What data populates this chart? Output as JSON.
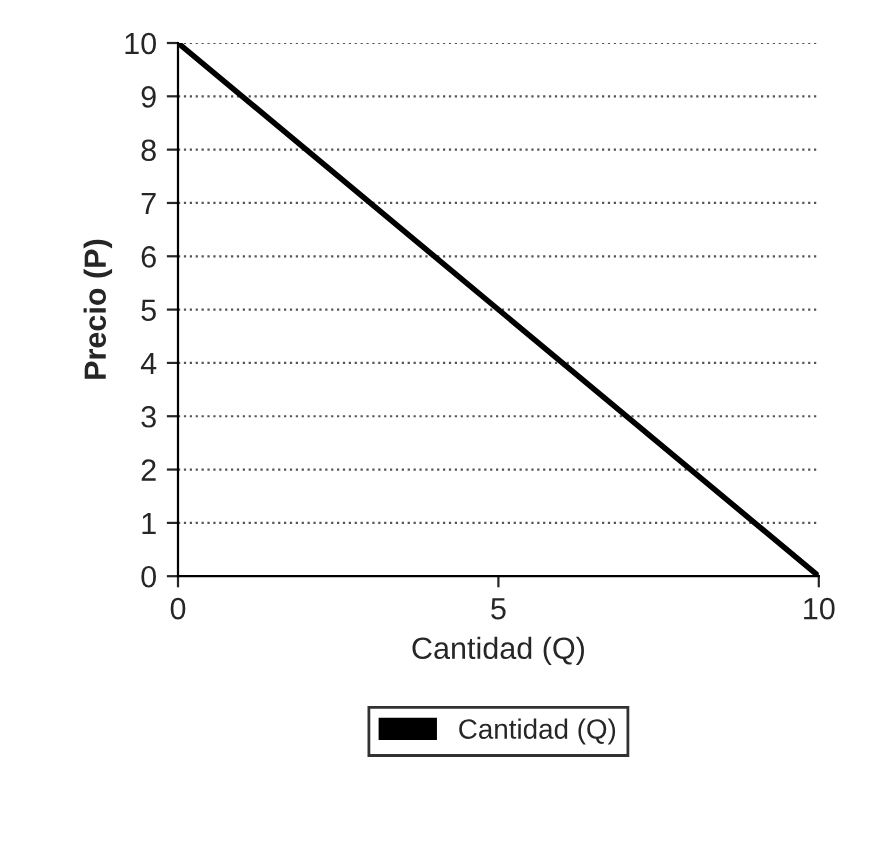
{
  "chart_data": {
    "type": "line",
    "xlabel": "Cantidad (Q)",
    "ylabel": "Precio (P)",
    "x": [
      0,
      10
    ],
    "series": [
      {
        "name": "Cantidad (Q)",
        "color": "#000000",
        "values": [
          10,
          0
        ]
      }
    ],
    "xlim": [
      0,
      10
    ],
    "ylim": [
      0,
      10
    ],
    "xticks": [
      0,
      5,
      10
    ],
    "yticks": [
      0,
      1,
      2,
      3,
      4,
      5,
      6,
      7,
      8,
      9,
      10
    ],
    "grid": "y",
    "legend": "bottom",
    "marker": "none",
    "line_style": "solid"
  }
}
